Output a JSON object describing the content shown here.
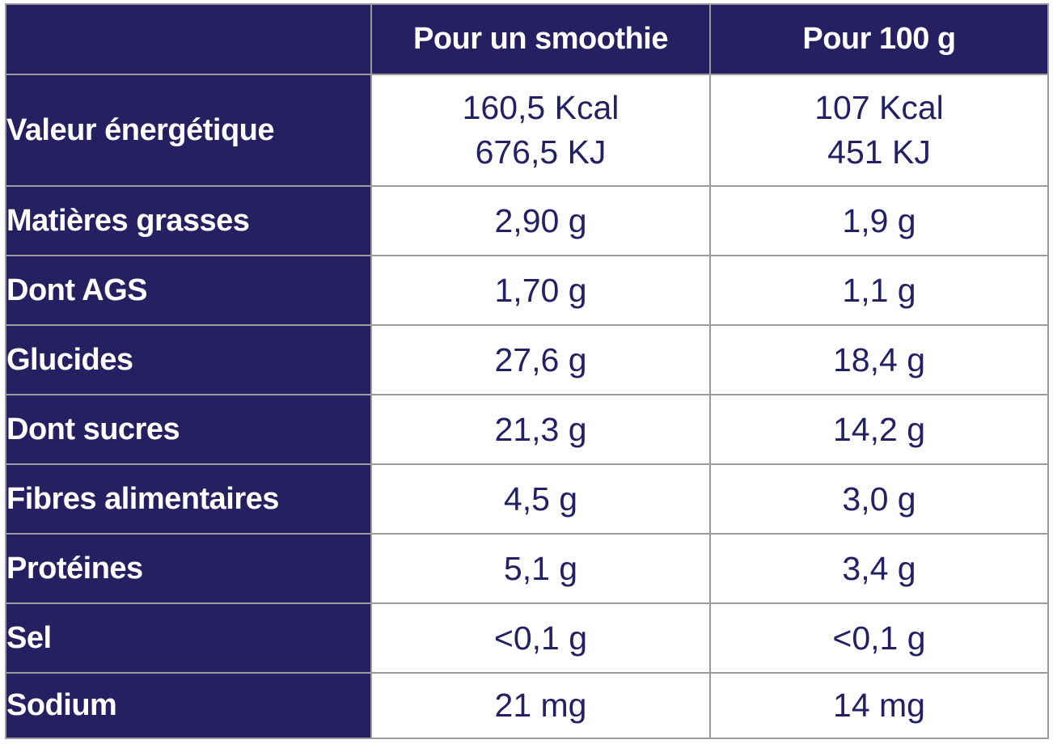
{
  "colors": {
    "navy_background": "#262063",
    "header_text": "#ffffff",
    "value_text": "#232065",
    "gridline": "#9b9b9b",
    "cell_background": "#ffffff"
  },
  "table": {
    "header": {
      "col1": "",
      "col2": "Pour un smoothie",
      "col3": "Pour 100 g"
    },
    "rows": [
      {
        "label": "Valeur énergétique",
        "smoothie": "160,5 Kcal",
        "smoothie2": "676,5 KJ",
        "per100": "107 Kcal",
        "per1002": "451 KJ"
      },
      {
        "label": "Matières grasses",
        "smoothie": "2,90 g",
        "per100": "1,9 g"
      },
      {
        "label": "Dont AGS",
        "smoothie": "1,70 g",
        "per100": "1,1 g"
      },
      {
        "label": "Glucides",
        "smoothie": "27,6 g",
        "per100": "18,4 g"
      },
      {
        "label": "Dont sucres",
        "smoothie": "21,3 g",
        "per100": "14,2 g"
      },
      {
        "label": "Fibres alimentaires",
        "smoothie": "4,5 g",
        "per100": "3,0 g"
      },
      {
        "label": "Protéines",
        "smoothie": "5,1 g",
        "per100": "3,4 g"
      },
      {
        "label": "Sel",
        "smoothie": "<0,1 g",
        "per100": "<0,1 g"
      },
      {
        "label": "Sodium",
        "smoothie": "21 mg",
        "per100": "14 mg"
      }
    ]
  },
  "chart_data": {
    "type": "table",
    "columns": [
      "",
      "Pour un smoothie",
      "Pour 100 g"
    ],
    "rows": [
      [
        "Valeur énergétique",
        "160,5 Kcal / 676,5 KJ",
        "107 Kcal / 451 KJ"
      ],
      [
        "Matières grasses",
        "2,90 g",
        "1,9 g"
      ],
      [
        "Dont AGS",
        "1,70 g",
        "1,1 g"
      ],
      [
        "Glucides",
        "27,6 g",
        "18,4 g"
      ],
      [
        "Dont sucres",
        "21,3 g",
        "14,2 g"
      ],
      [
        "Fibres alimentaires",
        "4,5 g",
        "3,0 g"
      ],
      [
        "Protéines",
        "5,1 g",
        "3,4 g"
      ],
      [
        "Sel",
        "<0,1 g",
        "<0,1 g"
      ],
      [
        "Sodium",
        "21 mg",
        "14 mg"
      ]
    ]
  }
}
